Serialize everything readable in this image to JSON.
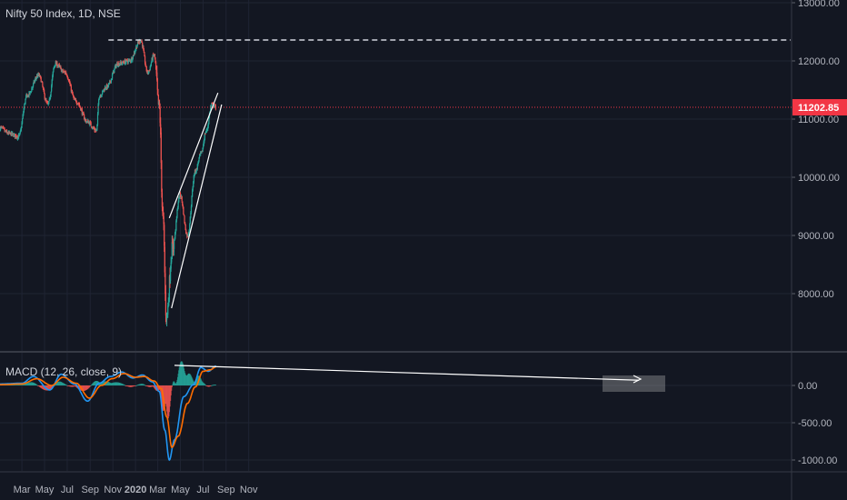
{
  "title": "Nifty 50 Index, 1D, NSE",
  "colors": {
    "background": "#131722",
    "grid": "#1f2433",
    "up": "#26a69a",
    "down": "#ef5350",
    "macd_line": "#2196f3",
    "signal_line": "#ff6d00",
    "axis_text": "#b2b5be",
    "price_tag": "#f23645",
    "trendline": "#ffffff"
  },
  "chart_data": [
    {
      "type": "candlestick",
      "title": "Nifty 50 Index, 1D, NSE",
      "y_ticks": [
        8000,
        9000,
        10000,
        11000,
        12000,
        13000
      ],
      "y_tick_labels": [
        "8000.00",
        "9000.00",
        "10000.00",
        "11000.00",
        "12000.00",
        "13000.00"
      ],
      "ylim": [
        7200,
        13000
      ],
      "last_price": 11202.85,
      "last_price_label": "11202.85",
      "resistance_level": 12360,
      "x_tick_labels": [
        "Mar",
        "May",
        "Jul",
        "Sep",
        "Nov",
        "2020",
        "Mar",
        "May",
        "Jul",
        "Sep",
        "Nov"
      ],
      "price_path_key_points": [
        {
          "date": "2019-01-01",
          "value": 10850
        },
        {
          "date": "2019-01-25",
          "value": 10750
        },
        {
          "date": "2019-02-20",
          "value": 10700
        },
        {
          "date": "2019-03-15",
          "value": 11400
        },
        {
          "date": "2019-04-15",
          "value": 11750
        },
        {
          "date": "2019-05-10",
          "value": 11250
        },
        {
          "date": "2019-05-30",
          "value": 11950
        },
        {
          "date": "2019-06-25",
          "value": 11800
        },
        {
          "date": "2019-07-25",
          "value": 11300
        },
        {
          "date": "2019-08-25",
          "value": 10950
        },
        {
          "date": "2019-09-18",
          "value": 10800
        },
        {
          "date": "2019-09-25",
          "value": 11400
        },
        {
          "date": "2019-10-15",
          "value": 11550
        },
        {
          "date": "2019-11-15",
          "value": 11950
        },
        {
          "date": "2019-12-15",
          "value": 12000
        },
        {
          "date": "2020-01-15",
          "value": 12350
        },
        {
          "date": "2020-02-03",
          "value": 11800
        },
        {
          "date": "2020-02-20",
          "value": 12100
        },
        {
          "date": "2020-03-05",
          "value": 11200
        },
        {
          "date": "2020-03-15",
          "value": 9300
        },
        {
          "date": "2020-03-24",
          "value": 7600
        },
        {
          "date": "2020-04-10",
          "value": 8800
        },
        {
          "date": "2020-04-30",
          "value": 9700
        },
        {
          "date": "2020-05-20",
          "value": 9000
        },
        {
          "date": "2020-06-10",
          "value": 10100
        },
        {
          "date": "2020-06-25",
          "value": 10400
        },
        {
          "date": "2020-07-10",
          "value": 10800
        },
        {
          "date": "2020-07-24",
          "value": 11250
        },
        {
          "date": "2020-08-05",
          "value": 11200
        }
      ]
    },
    {
      "type": "histogram+line",
      "title": "MACD (12, 26, close, 9)",
      "y_ticks": [
        0,
        -500,
        -1000
      ],
      "y_tick_labels": [
        "0.00",
        "-500.00",
        "-1000.00"
      ],
      "ylim": [
        -1130,
        380
      ],
      "series": [
        {
          "name": "MACD",
          "key_points": [
            {
              "date": "2019-01-01",
              "value": 20
            },
            {
              "date": "2019-03-01",
              "value": 30
            },
            {
              "date": "2019-04-01",
              "value": 120
            },
            {
              "date": "2019-05-15",
              "value": -60
            },
            {
              "date": "2019-06-15",
              "value": 150
            },
            {
              "date": "2019-07-20",
              "value": 20
            },
            {
              "date": "2019-08-25",
              "value": -210
            },
            {
              "date": "2019-09-25",
              "value": 30
            },
            {
              "date": "2019-10-25",
              "value": 120
            },
            {
              "date": "2019-11-25",
              "value": 180
            },
            {
              "date": "2019-12-25",
              "value": 100
            },
            {
              "date": "2020-01-20",
              "value": 140
            },
            {
              "date": "2020-02-15",
              "value": 50
            },
            {
              "date": "2020-03-05",
              "value": -80
            },
            {
              "date": "2020-03-20",
              "value": -600
            },
            {
              "date": "2020-04-01",
              "value": -1000
            },
            {
              "date": "2020-04-15",
              "value": -730
            },
            {
              "date": "2020-05-10",
              "value": -150
            },
            {
              "date": "2020-06-05",
              "value": 10
            },
            {
              "date": "2020-06-25",
              "value": 240
            },
            {
              "date": "2020-07-15",
              "value": 190
            },
            {
              "date": "2020-08-05",
              "value": 260
            }
          ]
        },
        {
          "name": "Signal",
          "key_points": [
            {
              "date": "2019-01-01",
              "value": 10
            },
            {
              "date": "2019-03-01",
              "value": 20
            },
            {
              "date": "2019-04-10",
              "value": 90
            },
            {
              "date": "2019-05-20",
              "value": 0
            },
            {
              "date": "2019-06-20",
              "value": 110
            },
            {
              "date": "2019-07-25",
              "value": 30
            },
            {
              "date": "2019-08-30",
              "value": -170
            },
            {
              "date": "2019-10-01",
              "value": 0
            },
            {
              "date": "2019-10-30",
              "value": 90
            },
            {
              "date": "2019-12-01",
              "value": 160
            },
            {
              "date": "2020-01-01",
              "value": 110
            },
            {
              "date": "2020-01-25",
              "value": 120
            },
            {
              "date": "2020-02-20",
              "value": 60
            },
            {
              "date": "2020-03-10",
              "value": -40
            },
            {
              "date": "2020-03-25",
              "value": -420
            },
            {
              "date": "2020-04-08",
              "value": -830
            },
            {
              "date": "2020-04-25",
              "value": -680
            },
            {
              "date": "2020-05-20",
              "value": -240
            },
            {
              "date": "2020-06-10",
              "value": -20
            },
            {
              "date": "2020-07-01",
              "value": 190
            },
            {
              "date": "2020-07-20",
              "value": 210
            },
            {
              "date": "2020-08-05",
              "value": 250
            }
          ]
        }
      ]
    }
  ]
}
